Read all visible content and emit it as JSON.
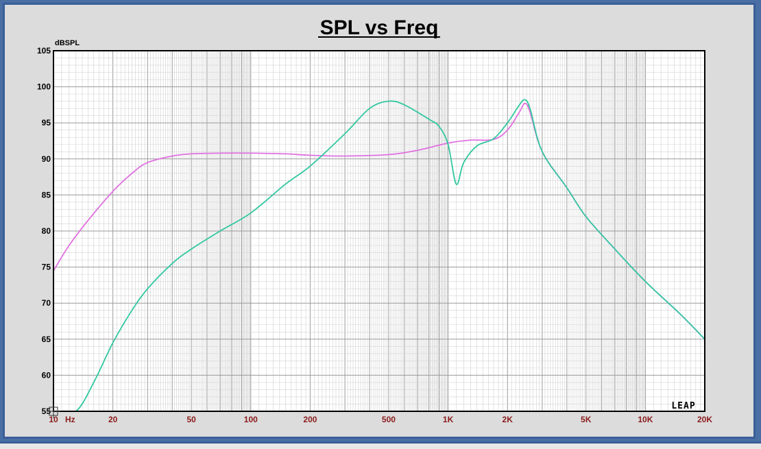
{
  "chart_data": {
    "type": "line",
    "title": "SPL vs Freq",
    "ylabel": "dBSPL",
    "xlabel": "",
    "x_scale": "log",
    "xlim": [
      10,
      20000
    ],
    "ylim": [
      55,
      105
    ],
    "grid": true,
    "yticks": [
      55,
      60,
      65,
      70,
      75,
      80,
      85,
      90,
      95,
      100,
      105
    ],
    "xticks": [
      {
        "value": 10,
        "label": "10"
      },
      {
        "value": 20,
        "label": "20"
      },
      {
        "value": 50,
        "label": "50"
      },
      {
        "value": 100,
        "label": "100"
      },
      {
        "value": 200,
        "label": "200"
      },
      {
        "value": 500,
        "label": "500"
      },
      {
        "value": 1000,
        "label": "1K"
      },
      {
        "value": 2000,
        "label": "2K"
      },
      {
        "value": 5000,
        "label": "5K"
      },
      {
        "value": 10000,
        "label": "10K"
      },
      {
        "value": 20000,
        "label": "20K"
      }
    ],
    "x_unit_label": "Hz",
    "series": [
      {
        "color": "#e070e0",
        "x": [
          10,
          12,
          15,
          20,
          25,
          30,
          40,
          50,
          70,
          100,
          150,
          200,
          300,
          500,
          700,
          1000,
          1300,
          1700,
          2000,
          2300,
          2450,
          2600,
          3000,
          4000,
          5000,
          7000,
          10000,
          15000,
          20000
        ],
        "y": [
          74.5,
          78,
          81.5,
          85.5,
          88,
          89.5,
          90.4,
          90.7,
          90.8,
          90.8,
          90.7,
          90.5,
          90.4,
          90.6,
          91.2,
          92.2,
          92.6,
          92.7,
          94,
          96.5,
          97.7,
          96.5,
          91,
          86,
          82,
          77.5,
          73,
          68.5,
          65
        ]
      },
      {
        "color": "#30c8a0",
        "x": [
          10,
          13,
          16,
          20,
          25,
          30,
          40,
          50,
          70,
          100,
          150,
          200,
          300,
          400,
          500,
          600,
          800,
          900,
          1000,
          1100,
          1200,
          1400,
          1700,
          2000,
          2300,
          2450,
          2600,
          3000,
          4000,
          5000,
          7000,
          10000,
          15000,
          20000
        ],
        "y": [
          54.5,
          55,
          59,
          64.5,
          69,
          72,
          75.5,
          77.5,
          80,
          82.5,
          86.5,
          89,
          93.5,
          97,
          98,
          97.5,
          95.5,
          94.5,
          92,
          86.5,
          89.5,
          91.8,
          92.8,
          95,
          97.5,
          98.2,
          97,
          91,
          86,
          82,
          77.5,
          73,
          68.5,
          65
        ]
      }
    ],
    "logo": "LEAP"
  }
}
